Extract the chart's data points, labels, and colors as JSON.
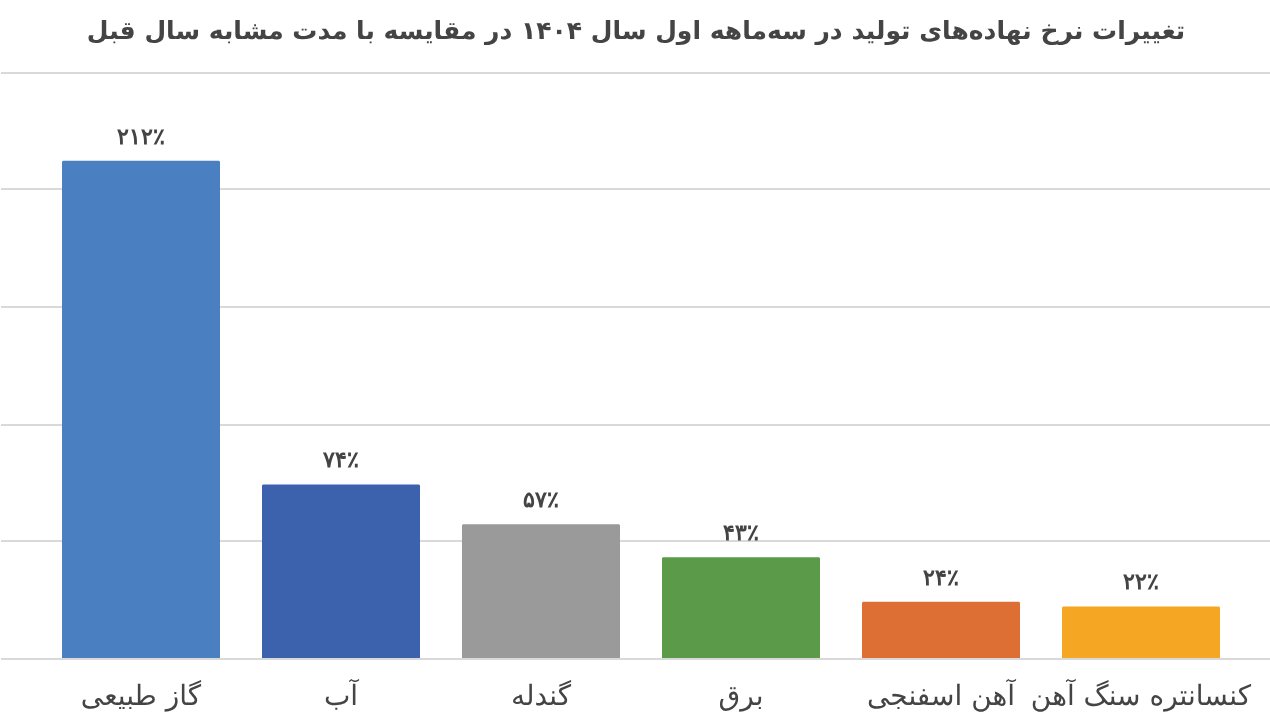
{
  "chart_data": {
    "type": "bar",
    "title": "تغییرات نرخ نهاده‌های تولید در سه‌ماهه اول سال ۱۴۰۴ در مقایسه با مدت مشابه سال قبل",
    "categories": [
      "گاز طبیعی",
      "آب",
      "گندله",
      "برق",
      "آهن اسفنجی",
      "کنسانتره سنگ آهن"
    ],
    "values": [
      212,
      74,
      57,
      43,
      24,
      22
    ],
    "colors": [
      "#4a80c2",
      "#3c62ae",
      "#9a9a9a",
      "#5a9a48",
      "#dd6f35",
      "#f5a724"
    ],
    "value_labels": [
      "۲۱۲٪",
      "۷۴٪",
      "۵۷٪",
      "۴۳٪",
      "۲۴٪",
      "۲۲٪"
    ],
    "yticks": [
      {
        "value": 0,
        "label": null
      },
      {
        "value": 50,
        "label": null
      },
      {
        "value": 100,
        "label": null
      },
      {
        "value": 150,
        "label": null
      },
      {
        "value": 200,
        "label": null
      },
      {
        "value": 250,
        "label": null
      }
    ],
    "grid": "y",
    "tick_labels": "x"
  }
}
